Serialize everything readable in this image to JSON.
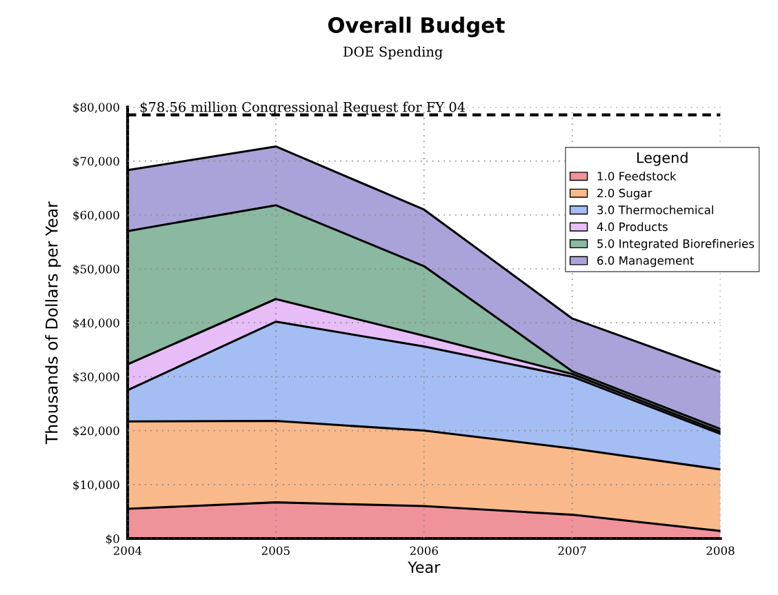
{
  "chart_data": {
    "type": "area",
    "stacked": true,
    "title": "Overall Budget",
    "subtitle": "DOE Spending",
    "xlabel": "Year",
    "ylabel": "Thousands of Dollars per Year",
    "legend_title": "Legend",
    "x": [
      2004,
      2005,
      2006,
      2007,
      2008
    ],
    "series": [
      {
        "name": "1.0 Feedstock",
        "color": "#f0929a",
        "values": [
          5500,
          6700,
          6000,
          4400,
          1400
        ]
      },
      {
        "name": "2.0 Sugar",
        "color": "#f9b98a",
        "values": [
          16200,
          15100,
          14000,
          12300,
          11400
        ]
      },
      {
        "name": "3.0 Thermochemical",
        "color": "#a4bdf2",
        "values": [
          5800,
          18400,
          15600,
          13300,
          6600
        ]
      },
      {
        "name": "4.0 Products",
        "color": "#e6bdf7",
        "values": [
          4800,
          4200,
          2000,
          500,
          400
        ]
      },
      {
        "name": "5.0 Integrated Biorefineries",
        "color": "#8bb8a0",
        "values": [
          24700,
          17400,
          12900,
          500,
          500
        ]
      },
      {
        "name": "6.0 Management",
        "color": "#a9a3d9",
        "values": [
          11300,
          10900,
          10500,
          9800,
          10600
        ]
      }
    ],
    "xlim": [
      2004,
      2008
    ],
    "xticks": [
      2004,
      2005,
      2006,
      2007,
      2008
    ],
    "ylim": [
      0,
      80000
    ],
    "yticks": [
      {
        "value": 0,
        "label": "$0"
      },
      {
        "value": 10000,
        "label": "$10,000"
      },
      {
        "value": 20000,
        "label": "$20,000"
      },
      {
        "value": 30000,
        "label": "$30,000"
      },
      {
        "value": 40000,
        "label": "$40,000"
      },
      {
        "value": 50000,
        "label": "$50,000"
      },
      {
        "value": 60000,
        "label": "$60,000"
      },
      {
        "value": 70000,
        "label": "$70,000"
      },
      {
        "value": 80000,
        "label": "$80,000"
      }
    ],
    "ref_lines": [
      {
        "axis": "y",
        "value": 78560,
        "label": "$78.56 million Congressional Request for FY 04",
        "color": "#000000",
        "line_style": "dashed"
      }
    ],
    "grid": true,
    "legend": "top right"
  }
}
